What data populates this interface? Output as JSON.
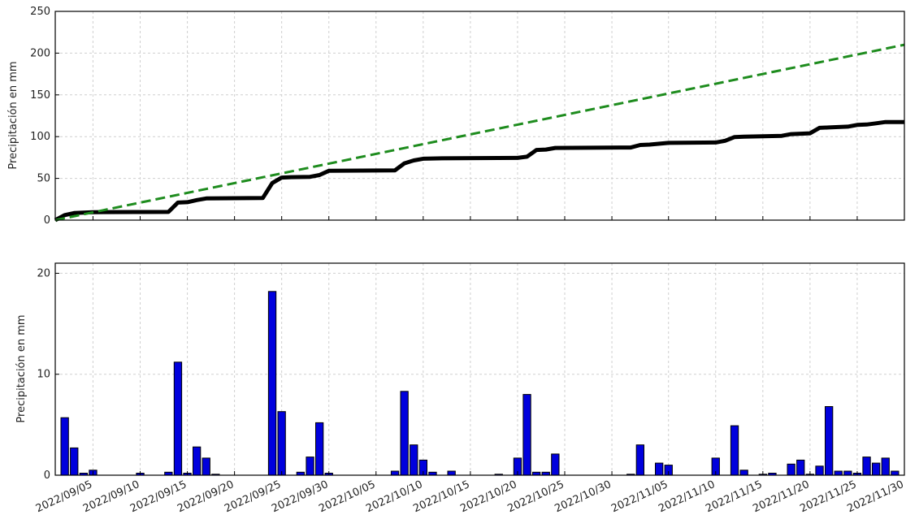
{
  "chart_data": [
    {
      "type": "line",
      "ylabel": "Precipitación en mm",
      "ylim": [
        0,
        250
      ],
      "xlim": [
        "2022-09-01",
        "2022-11-30"
      ],
      "y_ticks": [
        "0",
        "50",
        "100",
        "150",
        "200",
        "250"
      ],
      "grid": true,
      "series": [
        {
          "style": "solid",
          "color": "#000000",
          "x": [
            "2022-09-01",
            "2022-09-02",
            "2022-09-03",
            "2022-09-04",
            "2022-09-05",
            "2022-09-13",
            "2022-09-14",
            "2022-09-15",
            "2022-09-16",
            "2022-09-17",
            "2022-09-23",
            "2022-09-24",
            "2022-09-25",
            "2022-09-26",
            "2022-09-28",
            "2022-09-29",
            "2022-09-30",
            "2022-10-07",
            "2022-10-08",
            "2022-10-09",
            "2022-10-10",
            "2022-10-12",
            "2022-10-20",
            "2022-10-21",
            "2022-10-22",
            "2022-10-23",
            "2022-10-24",
            "2022-11-01",
            "2022-11-02",
            "2022-11-03",
            "2022-11-05",
            "2022-11-10",
            "2022-11-11",
            "2022-11-12",
            "2022-11-13",
            "2022-11-17",
            "2022-11-18",
            "2022-11-20",
            "2022-11-21",
            "2022-11-22",
            "2022-11-24",
            "2022-11-25",
            "2022-11-26",
            "2022-11-27",
            "2022-11-28",
            "2022-11-30"
          ],
          "y": [
            0,
            6,
            8.5,
            9,
            9.5,
            9.8,
            21,
            21.5,
            24,
            26,
            26.5,
            44.5,
            51,
            51.5,
            51.8,
            54,
            59,
            59.5,
            68,
            71.5,
            73.5,
            74,
            74.5,
            76,
            84,
            84.5,
            86.5,
            87,
            90,
            90.5,
            92.5,
            93,
            95,
            99.5,
            100,
            101,
            103,
            104,
            110.5,
            111,
            112,
            114,
            114.5,
            116,
            117.5,
            117.5
          ]
        },
        {
          "style": "dashed",
          "color": "#1e8c1e",
          "x": [
            "2022-09-01",
            "2022-11-30"
          ],
          "y": [
            0,
            210
          ]
        }
      ]
    },
    {
      "type": "bar",
      "ylabel": "Precipitación en mm",
      "ylim": [
        0,
        21
      ],
      "xlim": [
        "2022-09-01",
        "2022-11-30"
      ],
      "y_ticks": [
        "0",
        "10",
        "20"
      ],
      "grid": true,
      "color": "#0000dd",
      "x_ticks": [
        "2022/09/05",
        "2022/09/10",
        "2022/09/15",
        "2022/09/20",
        "2022/09/25",
        "2022/09/30",
        "2022/10/05",
        "2022/10/10",
        "2022/10/15",
        "2022/10/20",
        "2022/10/25",
        "2022/10/30",
        "2022/11/05",
        "2022/11/10",
        "2022/11/15",
        "2022/11/20",
        "2022/11/25",
        "2022/11/30"
      ],
      "x": [
        "2022-09-02",
        "2022-09-03",
        "2022-09-04",
        "2022-09-05",
        "2022-09-10",
        "2022-09-13",
        "2022-09-14",
        "2022-09-15",
        "2022-09-16",
        "2022-09-17",
        "2022-09-18",
        "2022-09-24",
        "2022-09-25",
        "2022-09-27",
        "2022-09-28",
        "2022-09-29",
        "2022-09-30",
        "2022-10-07",
        "2022-10-08",
        "2022-10-09",
        "2022-10-10",
        "2022-10-11",
        "2022-10-13",
        "2022-10-18",
        "2022-10-20",
        "2022-10-21",
        "2022-10-22",
        "2022-10-23",
        "2022-10-24",
        "2022-11-01",
        "2022-11-02",
        "2022-11-04",
        "2022-11-05",
        "2022-11-10",
        "2022-11-12",
        "2022-11-13",
        "2022-11-15",
        "2022-11-16",
        "2022-11-18",
        "2022-11-19",
        "2022-11-20",
        "2022-11-21",
        "2022-11-22",
        "2022-11-23",
        "2022-11-24",
        "2022-11-25",
        "2022-11-26",
        "2022-11-27",
        "2022-11-28",
        "2022-11-29"
      ],
      "values": [
        5.7,
        2.7,
        0.2,
        0.5,
        0.2,
        0.3,
        11.2,
        0.2,
        2.8,
        1.7,
        0.1,
        18.2,
        6.3,
        0.3,
        1.8,
        5.2,
        0.2,
        0.4,
        8.3,
        3.0,
        1.5,
        0.3,
        0.4,
        0.1,
        1.7,
        8.0,
        0.3,
        0.3,
        2.1,
        0.1,
        3.0,
        1.2,
        1.0,
        1.7,
        4.9,
        0.5,
        0.1,
        0.2,
        1.1,
        1.5,
        0.1,
        0.9,
        6.8,
        0.4,
        0.4,
        0.2,
        1.8,
        1.2,
        1.7,
        0.4
      ]
    }
  ]
}
